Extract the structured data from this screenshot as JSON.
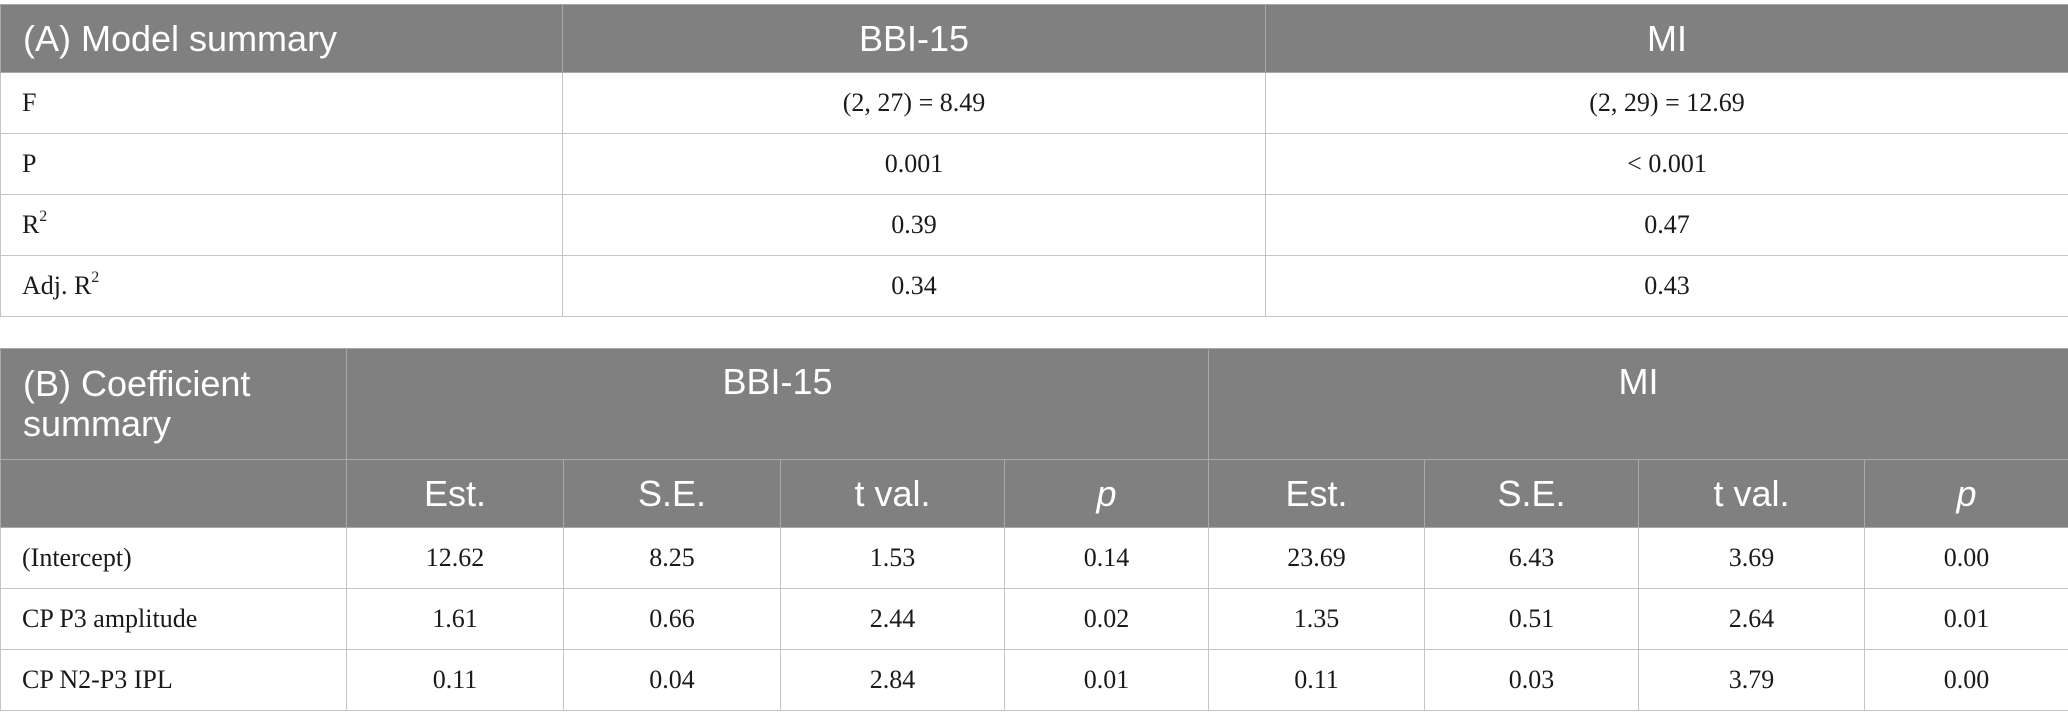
{
  "model_summary": {
    "title": "(A) Model summary",
    "columns": [
      "BBI-15",
      "MI"
    ],
    "rows": [
      {
        "label": "F",
        "sup": "",
        "values": [
          "(2, 27) = 8.49",
          "(2, 29) = 12.69"
        ]
      },
      {
        "label": "P",
        "sup": "",
        "values": [
          "0.001",
          "< 0.001"
        ]
      },
      {
        "label": "R",
        "sup": "2",
        "values": [
          "0.39",
          "0.47"
        ]
      },
      {
        "label": "Adj. R",
        "sup": "2",
        "values": [
          "0.34",
          "0.43"
        ]
      }
    ]
  },
  "coefficient_summary": {
    "title": "(B) Coefficient summary",
    "groups": [
      "BBI-15",
      "MI"
    ],
    "subcolumns": [
      "Est.",
      "S.E.",
      "t val.",
      "p",
      "Est.",
      "S.E.",
      "t val.",
      "p"
    ],
    "rows": [
      {
        "label": "(Intercept)",
        "values": [
          "12.62",
          "8.25",
          "1.53",
          "0.14",
          "23.69",
          "6.43",
          "3.69",
          "0.00"
        ]
      },
      {
        "label": "CP P3 amplitude",
        "values": [
          "1.61",
          "0.66",
          "2.44",
          "0.02",
          "1.35",
          "0.51",
          "2.64",
          "0.01"
        ]
      },
      {
        "label": "CP N2-P3 IPL",
        "values": [
          "0.11",
          "0.04",
          "2.84",
          "0.01",
          "0.11",
          "0.03",
          "3.79",
          "0.00"
        ]
      }
    ]
  }
}
